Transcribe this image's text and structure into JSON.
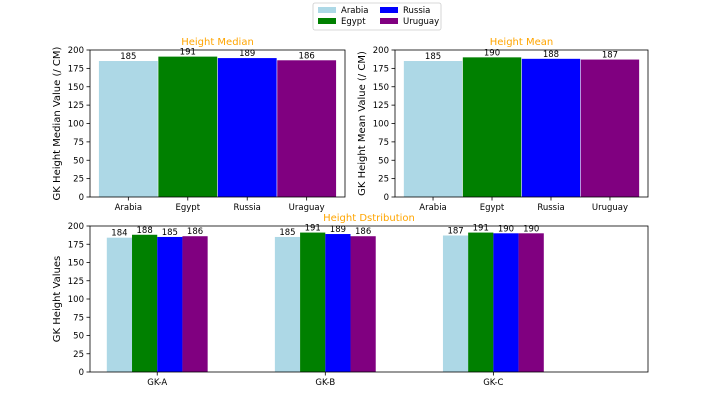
{
  "legend": {
    "entries": [
      {
        "name": "Arabia",
        "color": "#add8e6"
      },
      {
        "name": "Egypt",
        "color": "#008000"
      },
      {
        "name": "Russia",
        "color": "#0000ff"
      },
      {
        "name": "Uruguay",
        "color": "#800080"
      }
    ],
    "placement": "top-center"
  },
  "title_color": "#ffa500",
  "chart_data": [
    {
      "type": "bar",
      "title": "Height Median",
      "xlabel": "",
      "ylabel": "GK Height Median Value (/ CM)",
      "categories": [
        "Arabia",
        "Egypt",
        "Russia",
        "Uraguay"
      ],
      "values": [
        185,
        191,
        189,
        186
      ],
      "data_labels": [
        "185",
        "191",
        "189",
        "186"
      ],
      "colors": [
        "#add8e6",
        "#008000",
        "#0000ff",
        "#800080"
      ],
      "ylim": [
        0,
        200
      ],
      "yticks": [
        0,
        25,
        50,
        75,
        100,
        125,
        150,
        175,
        200
      ],
      "grid": false
    },
    {
      "type": "bar",
      "title": "Height Mean",
      "xlabel": "",
      "ylabel": "GK Height Mean Value (/ CM)",
      "categories": [
        "Arabia",
        "Egypt",
        "Russia",
        "Uruguay"
      ],
      "values": [
        185,
        190,
        188,
        187
      ],
      "data_labels": [
        "185",
        "190",
        "188",
        "187"
      ],
      "colors": [
        "#add8e6",
        "#008000",
        "#0000ff",
        "#800080"
      ],
      "ylim": [
        0,
        200
      ],
      "yticks": [
        0,
        25,
        50,
        75,
        100,
        125,
        150,
        175,
        200
      ],
      "grid": false
    },
    {
      "type": "bar",
      "title": "Height Dstribution",
      "xlabel": "",
      "ylabel": "GK Height Values",
      "categories": [
        "GK-A",
        "GK-B",
        "GK-C"
      ],
      "series": [
        {
          "name": "Arabia",
          "color": "#add8e6",
          "values": [
            184,
            185,
            187
          ],
          "data_labels": [
            "184",
            "185",
            "187"
          ]
        },
        {
          "name": "Egypt",
          "color": "#008000",
          "values": [
            188,
            191,
            191
          ],
          "data_labels": [
            "188",
            "191",
            "191"
          ]
        },
        {
          "name": "Russia",
          "color": "#0000ff",
          "values": [
            185,
            189,
            190
          ],
          "data_labels": [
            "185",
            "189",
            "190"
          ]
        },
        {
          "name": "Uruguay",
          "color": "#800080",
          "values": [
            186,
            186,
            190
          ],
          "data_labels": [
            "186",
            "186",
            "190"
          ]
        }
      ],
      "ylim": [
        0,
        200
      ],
      "yticks": [
        0,
        25,
        50,
        75,
        100,
        125,
        150,
        175,
        200
      ],
      "grid": false
    }
  ]
}
